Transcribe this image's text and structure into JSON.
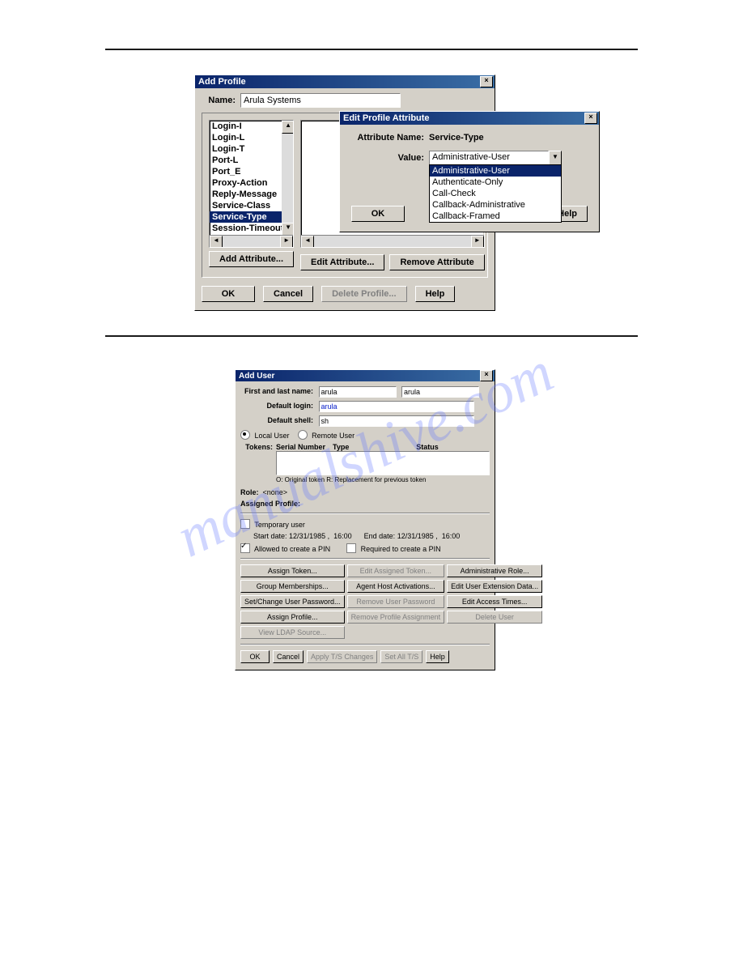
{
  "fig1": {
    "window_title": "Add Profile",
    "name_label": "Name:",
    "name_value": "Arula Systems",
    "left_list": [
      "Login-I",
      "Login-L",
      "Login-T",
      "Port-L",
      "Port_E",
      "Proxy-Action",
      "Reply-Message",
      "Service-Class",
      "Service-Type",
      "Session-Timeout"
    ],
    "left_selected": "Service-Type",
    "add_attribute_btn": "Add Attribute...",
    "edit_attribute_btn": "Edit Attribute...",
    "remove_attribute_btn": "Remove Attribute",
    "ok_btn": "OK",
    "cancel_btn": "Cancel",
    "delete_profile_btn": "Delete Profile...",
    "help_btn": "Help",
    "nested": {
      "title": "Edit Profile Attribute",
      "attr_name_label": "Attribute Name:",
      "attr_name_value": "Service-Type",
      "value_label": "Value:",
      "value_selected": "Administrative-User",
      "options": [
        "Administrative-User",
        "Authenticate-Only",
        "Call-Check",
        "Callback-Administrative",
        "Callback-Framed"
      ],
      "option_selected": "Administrative-User",
      "ok": "OK",
      "help": "Help"
    }
  },
  "fig2": {
    "window_title": "Add User",
    "first_last_label": "First and last name:",
    "first_name": "arula",
    "last_name": "arula",
    "default_login_label": "Default login:",
    "default_login": "arula",
    "default_shell_label": "Default shell:",
    "default_shell": "sh",
    "local_user": "Local User",
    "remote_user": "Remote User",
    "tokens_label": "Tokens:",
    "tokens_header_serial": "Serial Number",
    "tokens_header_type": "Type",
    "tokens_header_status": "Status",
    "token_legend": "O: Original token    R: Replacement for previous token",
    "role_label": "Role:",
    "role_value": "<none>",
    "assigned_profile_label": "Assigned Profile:",
    "temp_user": "Temporary user",
    "start_date_label": "Start date:",
    "start_date": "12/31/1985",
    "start_time": "16:00",
    "end_date_label": "End date:",
    "end_date": "12/31/1985",
    "end_time": "16:00",
    "allowed_pin": "Allowed to create a PIN",
    "required_pin": "Required to create a PIN",
    "btns": {
      "assign_token": "Assign Token...",
      "edit_assigned_token": "Edit Assigned Token...",
      "admin_role": "Administrative Role...",
      "group_memberships": "Group Memberships...",
      "agent_host": "Agent Host Activations...",
      "edit_user_ext": "Edit User Extension Data...",
      "set_change_pw": "Set/Change User Password...",
      "remove_pw": "Remove User Password",
      "edit_access": "Edit Access Times...",
      "assign_profile": "Assign Profile...",
      "remove_profile": "Remove Profile Assignment",
      "delete_user": "Delete User",
      "view_ldap": "View LDAP Source..."
    },
    "ok": "OK",
    "cancel": "Cancel",
    "apply": "Apply T/S Changes",
    "set_all": "Set All T/S",
    "help": "Help"
  }
}
